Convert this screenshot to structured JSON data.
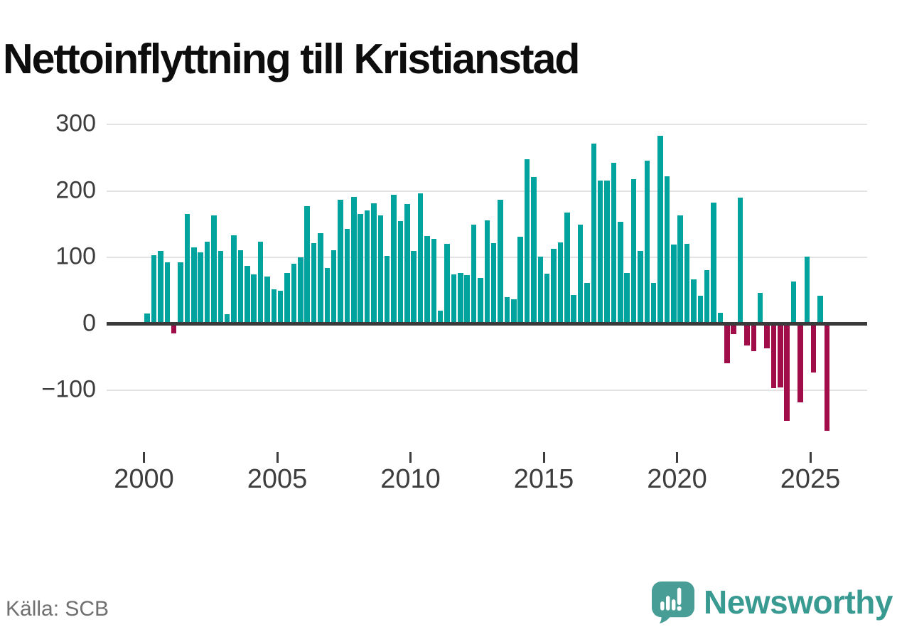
{
  "title": "Nettoinflyttning till Kristianstad",
  "source": "Källa: SCB",
  "branding": {
    "logo_text": "Newsworthy",
    "logo_icon": "newsworthy-speech-bubble-chart-icon"
  },
  "colors": {
    "positive_bar": "#00a39d",
    "negative_bar": "#a10d49",
    "axis_line": "#3a3a3a",
    "gridline": "#e3e3e3",
    "tick_text": "#3d3d3d",
    "title_text": "#0d0d0d",
    "source_text": "#707070",
    "brand_teal": "#399a91"
  },
  "chart_data": {
    "type": "bar",
    "title": "Nettoinflyttning till Kristianstad",
    "xlabel": "",
    "ylabel": "",
    "frequency": "quarterly",
    "x_start": "2000-Q1",
    "x_end": "2025-Q3",
    "ylim": [
      -175,
      310
    ],
    "grid": "horizontal",
    "y_ticks": [
      {
        "label": "300",
        "value": 300
      },
      {
        "label": "200",
        "value": 200
      },
      {
        "label": "100",
        "value": 100
      },
      {
        "label": "0",
        "value": 0
      },
      {
        "label": "−100",
        "value": -100
      }
    ],
    "x_tick_labels": [
      "2000",
      "2005",
      "2010",
      "2015",
      "2020",
      "2025"
    ],
    "values": [
      15,
      103,
      110,
      92,
      -12,
      93,
      165,
      115,
      107,
      123,
      163,
      110,
      14,
      133,
      111,
      87,
      74,
      123,
      71,
      52,
      50,
      77,
      90,
      100,
      177,
      121,
      136,
      84,
      111,
      187,
      143,
      191,
      165,
      171,
      181,
      163,
      102,
      194,
      155,
      180,
      110,
      196,
      132,
      128,
      20,
      120,
      74,
      76,
      73,
      149,
      69,
      156,
      121,
      187,
      40,
      37,
      131,
      248,
      221,
      101,
      75,
      113,
      122,
      167,
      43,
      149,
      62,
      271,
      215,
      215,
      242,
      153,
      76,
      218,
      110,
      245,
      61,
      283,
      222,
      119,
      163,
      120,
      67,
      42,
      81,
      182,
      17,
      -57,
      -13,
      190,
      -30,
      -39,
      46,
      -34,
      -94,
      -93,
      -143,
      64,
      -115,
      101,
      -71,
      42,
      -158
    ]
  }
}
